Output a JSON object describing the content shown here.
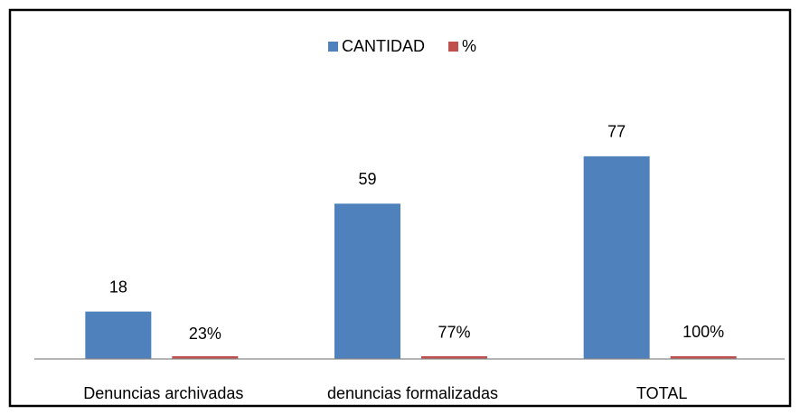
{
  "chart_data": {
    "type": "bar",
    "categories": [
      "Denuncias archivadas",
      "denuncias formalizadas",
      "TOTAL"
    ],
    "series": [
      {
        "name": "CANTIDAD",
        "color": "#4f81bd",
        "values": [
          18,
          59,
          77
        ]
      },
      {
        "name": "%",
        "color": "#c0504d",
        "values": [
          0.23,
          0.77,
          1
        ],
        "value_labels": [
          "23%",
          "77%",
          "100%"
        ]
      }
    ],
    "ylim": [
      0,
      90
    ],
    "legend": "top"
  }
}
